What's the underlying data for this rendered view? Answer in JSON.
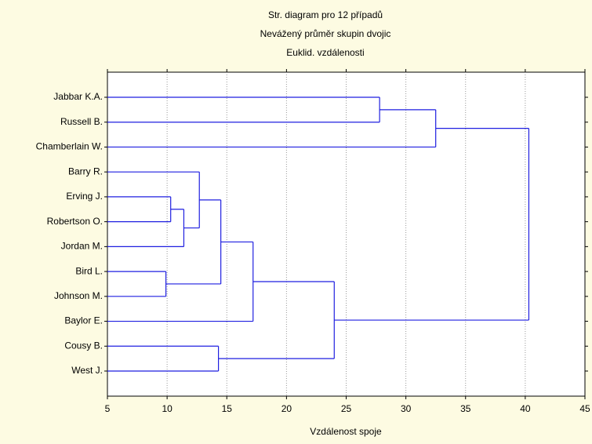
{
  "chart_data": {
    "type": "dendrogram",
    "title_lines": [
      "Str. diagram pro 12 případů",
      "Nevážený průměr skupin dvojic",
      "Euklid. vzdálenosti"
    ],
    "xlabel": "Vzdálenost spoje",
    "xlim": [
      5,
      45
    ],
    "xticks": [
      5,
      10,
      15,
      20,
      25,
      30,
      35,
      40,
      45
    ],
    "grid": true,
    "color": "#1f1fe0",
    "tree": {
      "height": 40.3,
      "children": [
        {
          "height": 32.5,
          "children": [
            {
              "height": 27.8,
              "children": [
                "Jabbar K.A.",
                "Russell B."
              ]
            },
            "Chamberlain W."
          ]
        },
        {
          "height": 24.0,
          "children": [
            {
              "height": 17.2,
              "children": [
                {
                  "height": 14.5,
                  "children": [
                    {
                      "height": 12.7,
                      "children": [
                        "Barry R.",
                        {
                          "height": 11.4,
                          "children": [
                            {
                              "height": 10.3,
                              "children": [
                                "Erving J.",
                                "Robertson O."
                              ]
                            },
                            "Jordan M."
                          ]
                        }
                      ]
                    },
                    {
                      "height": 9.9,
                      "children": [
                        "Bird L.",
                        "Johnson M."
                      ]
                    }
                  ]
                },
                "Baylor E."
              ]
            },
            {
              "height": 14.3,
              "children": [
                "Cousy B.",
                "West J."
              ]
            }
          ]
        }
      ]
    }
  }
}
